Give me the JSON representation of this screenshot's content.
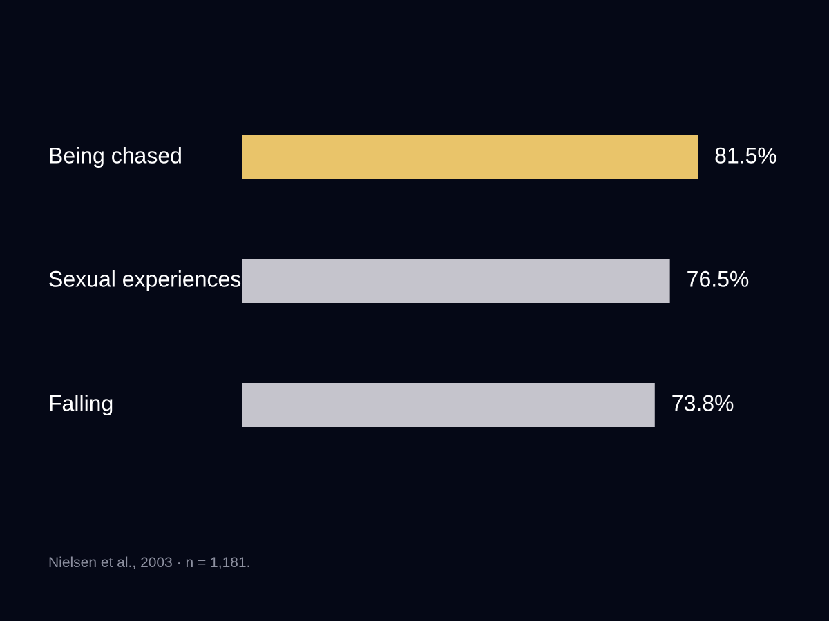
{
  "chart_data": {
    "type": "bar",
    "orientation": "horizontal",
    "categories": [
      "Being chased",
      "Sexual experiences",
      "Falling"
    ],
    "values": [
      81.5,
      76.5,
      73.8
    ],
    "value_labels": [
      "81.5%",
      "76.5%",
      "73.8%"
    ],
    "unit": "%",
    "xlim": [
      0,
      100
    ],
    "grid": false,
    "legend": "none",
    "colors": {
      "highlight": "#e9c46a",
      "default": "#c5c4cc",
      "background": "#050816",
      "text": "#ffffff",
      "note": "#8d90a0"
    },
    "highlight_index": 0
  },
  "footer": {
    "source": "Nielsen et al., 2003 · n = 1,181."
  }
}
